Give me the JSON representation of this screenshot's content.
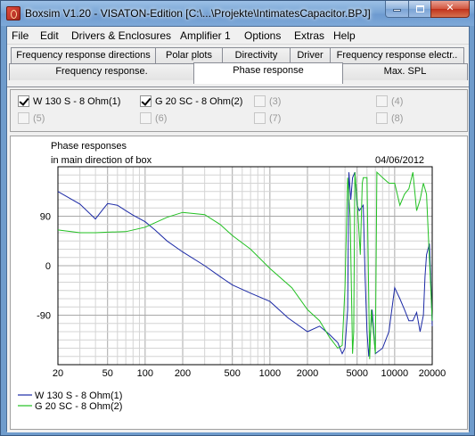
{
  "window": {
    "title": "Boxsim V1.20 - VISATON-Edition [C:\\...\\Projekte\\IntimatesCapacitor.BPJ]",
    "icon": "boxsim-app-icon",
    "controls": {
      "minimize": "minimize-icon",
      "maximize": "maximize-icon",
      "close": "close-icon"
    },
    "close_glyph": "✕"
  },
  "menu": [
    "File",
    "Edit",
    "Drivers & Enclosures",
    "Amplifier 1",
    "Options",
    "Extras",
    "Help"
  ],
  "tabs": {
    "row1": [
      "Frequency response directions",
      "Polar plots",
      "Directivity",
      "Driver",
      "Frequency response electr.."
    ],
    "row2": [
      "Frequency response.",
      "Phase response",
      "Max. SPL"
    ],
    "active": "Phase response"
  },
  "drivers": [
    {
      "label": "W 130 S - 8 Ohm(1)",
      "checked": true,
      "enabled": true
    },
    {
      "label": "G 20 SC - 8 Ohm(2)",
      "checked": true,
      "enabled": true
    },
    {
      "label": "(3)",
      "checked": false,
      "enabled": false
    },
    {
      "label": "(4)",
      "checked": false,
      "enabled": false
    },
    {
      "label": "(5)",
      "checked": false,
      "enabled": false
    },
    {
      "label": "(6)",
      "checked": false,
      "enabled": false
    },
    {
      "label": "(7)",
      "checked": false,
      "enabled": false
    },
    {
      "label": "(8)",
      "checked": false,
      "enabled": false
    }
  ],
  "chart_data": {
    "type": "line",
    "title": "Phase responses",
    "subtitle": "in main direction of box",
    "date": "04/06/2012",
    "xlabel": "",
    "ylabel": "",
    "x_scale": "log",
    "xlim": [
      20,
      20000
    ],
    "ylim": [
      -180,
      180
    ],
    "x_ticks": [
      20,
      50,
      100,
      200,
      500,
      1000,
      2000,
      5000,
      10000,
      20000
    ],
    "x_tick_labels": [
      "20",
      "50",
      "100",
      "200",
      "500",
      "1000",
      "2000",
      "5000",
      "10000",
      "20000"
    ],
    "y_ticks": [
      -90,
      0,
      90
    ],
    "y_tick_labels": [
      "-90",
      "0",
      "90"
    ],
    "grid": true,
    "legend_placement": "bottom-left",
    "series": [
      {
        "name": "W 130 S - 8 Ohm(1)",
        "color": "#1c2aa6",
        "points": [
          [
            20,
            135
          ],
          [
            30,
            112
          ],
          [
            40,
            85
          ],
          [
            45,
            100
          ],
          [
            50,
            113
          ],
          [
            60,
            110
          ],
          [
            70,
            100
          ],
          [
            80,
            92
          ],
          [
            100,
            80
          ],
          [
            120,
            65
          ],
          [
            150,
            45
          ],
          [
            200,
            25
          ],
          [
            300,
            0
          ],
          [
            400,
            -20
          ],
          [
            500,
            -35
          ],
          [
            700,
            -50
          ],
          [
            1000,
            -65
          ],
          [
            1400,
            -95
          ],
          [
            2000,
            -120
          ],
          [
            2500,
            -110
          ],
          [
            3000,
            -125
          ],
          [
            3500,
            -140
          ],
          [
            3800,
            -160
          ],
          [
            4000,
            -150
          ],
          [
            4200,
            -80
          ],
          [
            4300,
            170
          ],
          [
            4450,
            120
          ],
          [
            4600,
            160
          ],
          [
            4800,
            170
          ],
          [
            5000,
            110
          ],
          [
            5200,
            100
          ],
          [
            5600,
            110
          ],
          [
            5800,
            -20
          ],
          [
            6000,
            -120
          ],
          [
            6200,
            -165
          ],
          [
            6600,
            -80
          ],
          [
            7000,
            -160
          ],
          [
            8000,
            -150
          ],
          [
            9000,
            -120
          ],
          [
            10000,
            -40
          ],
          [
            11000,
            -60
          ],
          [
            12000,
            -80
          ],
          [
            13000,
            -100
          ],
          [
            14000,
            -100
          ],
          [
            15000,
            -85
          ],
          [
            16000,
            -120
          ],
          [
            17000,
            -90
          ],
          [
            17500,
            -20
          ],
          [
            18000,
            20
          ],
          [
            19000,
            40
          ],
          [
            19500,
            -30
          ],
          [
            20000,
            -110
          ]
        ]
      },
      {
        "name": "G 20 SC - 8 Ohm(2)",
        "color": "#22c022",
        "points": [
          [
            20,
            65
          ],
          [
            30,
            60
          ],
          [
            40,
            60
          ],
          [
            50,
            61
          ],
          [
            70,
            62
          ],
          [
            100,
            70
          ],
          [
            150,
            88
          ],
          [
            200,
            97
          ],
          [
            300,
            93
          ],
          [
            400,
            75
          ],
          [
            500,
            55
          ],
          [
            700,
            30
          ],
          [
            1000,
            -5
          ],
          [
            1500,
            -40
          ],
          [
            2000,
            -80
          ],
          [
            2500,
            -100
          ],
          [
            3000,
            -130
          ],
          [
            3500,
            -150
          ],
          [
            3800,
            -145
          ],
          [
            4000,
            -40
          ],
          [
            4200,
            160
          ],
          [
            4400,
            90
          ],
          [
            4600,
            -160
          ],
          [
            4700,
            -120
          ],
          [
            4800,
            170
          ],
          [
            5000,
            120
          ],
          [
            5300,
            20
          ],
          [
            5500,
            150
          ],
          [
            5600,
            160
          ],
          [
            6000,
            160
          ],
          [
            6300,
            -170
          ],
          [
            6500,
            -80
          ],
          [
            7000,
            -160
          ],
          [
            7200,
            170
          ],
          [
            8000,
            160
          ],
          [
            9000,
            150
          ],
          [
            10000,
            150
          ],
          [
            11000,
            110
          ],
          [
            12000,
            130
          ],
          [
            13000,
            140
          ],
          [
            14000,
            170
          ],
          [
            15000,
            100
          ],
          [
            16000,
            120
          ],
          [
            17000,
            150
          ],
          [
            18000,
            130
          ],
          [
            20000,
            -100
          ]
        ]
      }
    ]
  }
}
